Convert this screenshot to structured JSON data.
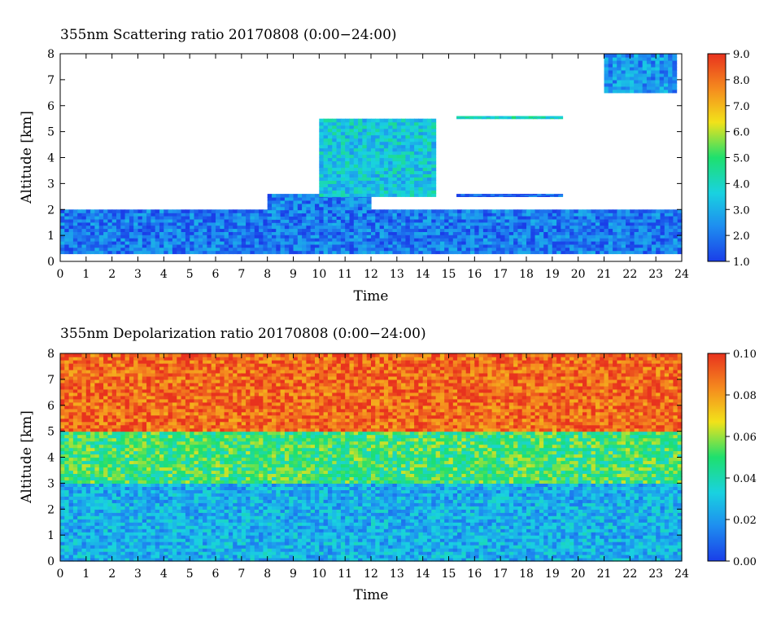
{
  "chart_data": [
    {
      "type": "heatmap",
      "title": "355nm Scattering ratio  20170808 (0:00−24:00)",
      "xlabel": "Time",
      "ylabel": "Altitude [km]",
      "xlim": [
        0,
        24
      ],
      "ylim": [
        0,
        8
      ],
      "x_ticks": [
        "0",
        "1",
        "2",
        "3",
        "4",
        "5",
        "6",
        "7",
        "8",
        "9",
        "10",
        "11",
        "12",
        "13",
        "14",
        "15",
        "16",
        "17",
        "18",
        "19",
        "20",
        "21",
        "22",
        "23",
        "24"
      ],
      "y_ticks": [
        "0",
        "1",
        "2",
        "3",
        "4",
        "5",
        "6",
        "7",
        "8"
      ],
      "colorbar": {
        "range": [
          1.0,
          9.0
        ],
        "ticks": [
          "1.0",
          "2.0",
          "3.0",
          "4.0",
          "5.0",
          "6.0",
          "7.0",
          "8.0",
          "9.0"
        ],
        "colors": [
          "#1a3ee8",
          "#1e8ef0",
          "#19d2e0",
          "#1ee06e",
          "#f2e21a",
          "#f58c1e",
          "#e8321e"
        ]
      },
      "features": [
        {
          "name": "boundary layer",
          "time": [
            0,
            24
          ],
          "altitude_km": [
            0.3,
            2.0
          ],
          "value": 2.0
        },
        {
          "name": "aerosol layer",
          "time": [
            8,
            12
          ],
          "altitude_km": [
            1.5,
            2.6
          ],
          "value": 2.0
        },
        {
          "name": "layer",
          "time": [
            15.3,
            19.4
          ],
          "altitude_km": [
            2.5,
            2.6
          ],
          "value": 1.5
        },
        {
          "name": "layer",
          "time": [
            15.3,
            19.4
          ],
          "altitude_km": [
            5.5,
            5.6
          ],
          "value": 4.0
        },
        {
          "name": "cloud",
          "time": [
            10,
            14.5
          ],
          "altitude_km": [
            2.5,
            5.5
          ],
          "value": 3.5
        },
        {
          "name": "cloud",
          "time": [
            21,
            23.8
          ],
          "altitude_km": [
            6.5,
            8.0
          ],
          "value": 2.5
        }
      ]
    },
    {
      "type": "heatmap",
      "title": "355nm Depolarization ratio  20170808 (0:00−24:00)",
      "xlabel": "Time",
      "ylabel": "Altitude [km]",
      "xlim": [
        0,
        24
      ],
      "ylim": [
        0,
        8
      ],
      "x_ticks": [
        "0",
        "1",
        "2",
        "3",
        "4",
        "5",
        "6",
        "7",
        "8",
        "9",
        "10",
        "11",
        "12",
        "13",
        "14",
        "15",
        "16",
        "17",
        "18",
        "19",
        "20",
        "21",
        "22",
        "23",
        "24"
      ],
      "y_ticks": [
        "0",
        "1",
        "2",
        "3",
        "4",
        "5",
        "6",
        "7",
        "8"
      ],
      "colorbar": {
        "range": [
          0.0,
          0.1
        ],
        "ticks": [
          "0.00",
          "0.02",
          "0.04",
          "0.06",
          "0.08",
          "0.10"
        ],
        "colors": [
          "#1a3ee8",
          "#1e8ef0",
          "#19d2e0",
          "#1ee06e",
          "#f2e21a",
          "#f58c1e",
          "#e8321e"
        ]
      },
      "features": [
        {
          "name": "lower troposphere",
          "time": [
            0,
            24
          ],
          "altitude_km": [
            0,
            3.0
          ],
          "value": 0.025
        },
        {
          "name": "mixed region",
          "time": [
            0,
            24
          ],
          "altitude_km": [
            3.0,
            5.0
          ],
          "value": 0.05
        },
        {
          "name": "noisy upper region",
          "time": [
            0,
            24
          ],
          "altitude_km": [
            5.0,
            8.0
          ],
          "value": 0.09
        }
      ]
    }
  ]
}
